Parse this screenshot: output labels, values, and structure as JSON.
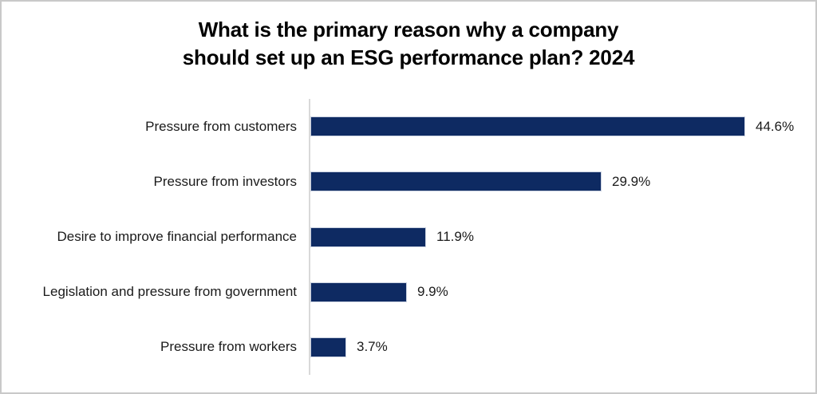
{
  "colors": {
    "bar": "#0e2a62",
    "axis": "#d9d9d9",
    "text": "#1a1a1a",
    "title": "#000000",
    "border": "#c9c9c9"
  },
  "chart_data": {
    "type": "bar",
    "orientation": "horizontal",
    "title": "What is the primary reason why a company should set up an ESG performance plan? 2024",
    "title_lines": [
      "What is the primary reason why a company",
      "should set up an ESG performance plan? 2024"
    ],
    "categories": [
      "Pressure from customers",
      "Pressure from investors",
      "Desire to improve financial performance",
      "Legislation and pressure from government",
      "Pressure from workers"
    ],
    "values": [
      44.6,
      29.9,
      11.9,
      9.9,
      3.7
    ],
    "value_labels": [
      "44.6%",
      "29.9%",
      "11.9%",
      "9.9%",
      "3.7%"
    ],
    "xlabel": "",
    "ylabel": "",
    "xlim": [
      0,
      51.5
    ],
    "grid": false,
    "legend": false,
    "data_labels_position": "outside-end"
  }
}
